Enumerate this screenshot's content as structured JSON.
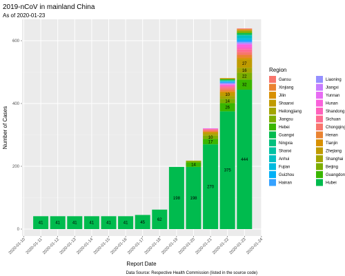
{
  "chart_data": {
    "type": "bar",
    "stacked": true,
    "title": "2019-nCoV in mainland China",
    "subtitle": "As of 2020-01-23",
    "xlabel": "Report Date",
    "ylabel": "Number of Cases",
    "caption": "Data Source: Respective Health Commission (listed in the source code)",
    "legend_title": "Region",
    "legend_position": "right",
    "grid": true,
    "ylim": [
      0,
      650
    ],
    "y_ticks": [
      0,
      200,
      400,
      600
    ],
    "x_ticks": [
      "2020-01-10",
      "2020-01-11",
      "2020-01-12",
      "2020-01-13",
      "2020-01-14",
      "2020-01-15",
      "2020-01-16",
      "2020-01-17",
      "2020-01-18",
      "2020-01-19",
      "2020-01-20",
      "2020-01-21",
      "2020-01-22",
      "2020-01-23",
      "2020-01-24"
    ],
    "categories": [
      "2020-01-11",
      "2020-01-12",
      "2020-01-13",
      "2020-01-14",
      "2020-01-15",
      "2020-01-16",
      "2020-01-17",
      "2020-01-18",
      "2020-01-19",
      "2020-01-20",
      "2020-01-21",
      "2020-01-22",
      "2020-01-23"
    ],
    "regions": [
      "Gansu",
      "Xinjiang",
      "Jilin",
      "Shaanxi",
      "Heilongjiang",
      "Jiangsu",
      "Hebei",
      "Guangxi",
      "Ningxia",
      "Shanxi",
      "Anhui",
      "Fujian",
      "Guizhou",
      "Hainan",
      "Liaoning",
      "Jiangxi",
      "Yunnan",
      "Hunan",
      "Shandong",
      "Sichuan",
      "Chongqing",
      "Henan",
      "Tianjin",
      "Zhejiang",
      "Shanghai",
      "Beijing",
      "Guangdong",
      "Hubei"
    ],
    "colors": [
      "#F8766D",
      "#EA8331",
      "#D89000",
      "#C09B00",
      "#A3A500",
      "#7CAE00",
      "#39B600",
      "#00BB4E",
      "#00BF7D",
      "#00C1A3",
      "#00BFC4",
      "#00BAE0",
      "#00B0F6",
      "#35A2FF",
      "#9590FF",
      "#C77CFF",
      "#E76BF3",
      "#FA62DB",
      "#FF62BC",
      "#FF6C90",
      "#F8766D",
      "#EA8331",
      "#D89000",
      "#C09B00",
      "#A3A500",
      "#7CAE00",
      "#39B600",
      "#00BB4E"
    ],
    "series": [
      {
        "name": "Hubei",
        "values": [
          41,
          41,
          41,
          41,
          41,
          41,
          45,
          62,
          198,
          198,
          270,
          375,
          444
        ]
      },
      {
        "name": "Guangdong",
        "values": [
          0,
          0,
          0,
          0,
          0,
          0,
          0,
          0,
          0,
          14,
          17,
          26,
          32
        ]
      },
      {
        "name": "Beijing",
        "values": [
          0,
          0,
          0,
          0,
          0,
          0,
          0,
          0,
          0,
          5,
          10,
          14,
          22
        ]
      },
      {
        "name": "Shanghai",
        "values": [
          0,
          0,
          0,
          0,
          0,
          0,
          0,
          0,
          0,
          1,
          6,
          9,
          16
        ]
      },
      {
        "name": "Zhejiang",
        "values": [
          0,
          0,
          0,
          0,
          0,
          0,
          0,
          0,
          0,
          0,
          5,
          10,
          27
        ]
      },
      {
        "name": "Tianjin",
        "values": [
          0,
          0,
          0,
          0,
          0,
          0,
          0,
          0,
          0,
          0,
          2,
          4,
          5
        ]
      },
      {
        "name": "Henan",
        "values": [
          0,
          0,
          0,
          0,
          0,
          0,
          0,
          0,
          0,
          0,
          1,
          5,
          9
        ]
      },
      {
        "name": "Chongqing",
        "values": [
          0,
          0,
          0,
          0,
          0,
          0,
          0,
          0,
          0,
          0,
          5,
          6,
          9
        ]
      },
      {
        "name": "Sichuan",
        "values": [
          0,
          0,
          0,
          0,
          0,
          0,
          0,
          0,
          0,
          0,
          2,
          5,
          8
        ]
      },
      {
        "name": "Shandong",
        "values": [
          0,
          0,
          0,
          0,
          0,
          0,
          0,
          0,
          0,
          0,
          1,
          2,
          6
        ]
      },
      {
        "name": "Hunan",
        "values": [
          0,
          0,
          0,
          0,
          0,
          0,
          0,
          0,
          0,
          0,
          1,
          4,
          9
        ]
      },
      {
        "name": "Yunnan",
        "values": [
          0,
          0,
          0,
          0,
          0,
          0,
          0,
          0,
          0,
          0,
          1,
          1,
          2
        ]
      },
      {
        "name": "Jiangxi",
        "values": [
          0,
          0,
          0,
          0,
          0,
          0,
          0,
          0,
          0,
          0,
          0,
          2,
          3
        ]
      },
      {
        "name": "Liaoning",
        "values": [
          0,
          0,
          0,
          0,
          0,
          0,
          0,
          0,
          0,
          0,
          0,
          2,
          3
        ]
      },
      {
        "name": "Hainan",
        "values": [
          0,
          0,
          0,
          0,
          0,
          0,
          0,
          0,
          0,
          0,
          0,
          4,
          5
        ]
      },
      {
        "name": "Guizhou",
        "values": [
          0,
          0,
          0,
          0,
          0,
          0,
          0,
          0,
          0,
          0,
          0,
          1,
          3
        ]
      },
      {
        "name": "Fujian",
        "values": [
          0,
          0,
          0,
          0,
          0,
          0,
          0,
          0,
          0,
          0,
          0,
          1,
          5
        ]
      },
      {
        "name": "Anhui",
        "values": [
          0,
          0,
          0,
          0,
          0,
          0,
          0,
          0,
          0,
          0,
          0,
          1,
          9
        ]
      },
      {
        "name": "Shanxi",
        "values": [
          0,
          0,
          0,
          0,
          0,
          0,
          0,
          0,
          0,
          0,
          0,
          1,
          1
        ]
      },
      {
        "name": "Ningxia",
        "values": [
          0,
          0,
          0,
          0,
          0,
          0,
          0,
          0,
          0,
          0,
          0,
          1,
          1
        ]
      },
      {
        "name": "Guangxi",
        "values": [
          0,
          0,
          0,
          0,
          0,
          0,
          0,
          0,
          0,
          0,
          0,
          2,
          5
        ]
      },
      {
        "name": "Hebei",
        "values": [
          0,
          0,
          0,
          0,
          0,
          0,
          0,
          0,
          0,
          0,
          0,
          1,
          1
        ]
      },
      {
        "name": "Jiangsu",
        "values": [
          0,
          0,
          0,
          0,
          0,
          0,
          0,
          0,
          0,
          0,
          0,
          1,
          5
        ]
      },
      {
        "name": "Heilongjiang",
        "values": [
          0,
          0,
          0,
          0,
          0,
          0,
          0,
          0,
          0,
          0,
          0,
          1,
          1
        ]
      },
      {
        "name": "Shaanxi",
        "values": [
          0,
          0,
          0,
          0,
          0,
          0,
          0,
          0,
          0,
          0,
          0,
          1,
          3
        ]
      },
      {
        "name": "Jilin",
        "values": [
          0,
          0,
          0,
          0,
          0,
          0,
          0,
          0,
          0,
          0,
          0,
          1,
          1
        ]
      },
      {
        "name": "Xinjiang",
        "values": [
          0,
          0,
          0,
          0,
          0,
          0,
          0,
          0,
          0,
          0,
          0,
          0,
          2
        ]
      },
      {
        "name": "Gansu",
        "values": [
          0,
          0,
          0,
          0,
          0,
          0,
          0,
          0,
          0,
          0,
          0,
          0,
          2
        ]
      }
    ],
    "bar_labels": {
      "Hubei": [
        41,
        41,
        41,
        41,
        41,
        41,
        45,
        62,
        198,
        198,
        270,
        375,
        444
      ],
      "Guangdong": [
        null,
        null,
        null,
        null,
        null,
        null,
        null,
        null,
        null,
        14,
        17,
        26,
        32
      ],
      "Beijing": [
        null,
        null,
        null,
        null,
        null,
        null,
        null,
        null,
        null,
        null,
        10,
        14,
        22
      ],
      "Shanghai": [
        null,
        null,
        null,
        null,
        null,
        null,
        null,
        null,
        null,
        null,
        null,
        null,
        16
      ],
      "Zhejiang": [
        null,
        null,
        null,
        null,
        null,
        null,
        null,
        null,
        null,
        null,
        null,
        10,
        27
      ]
    }
  }
}
